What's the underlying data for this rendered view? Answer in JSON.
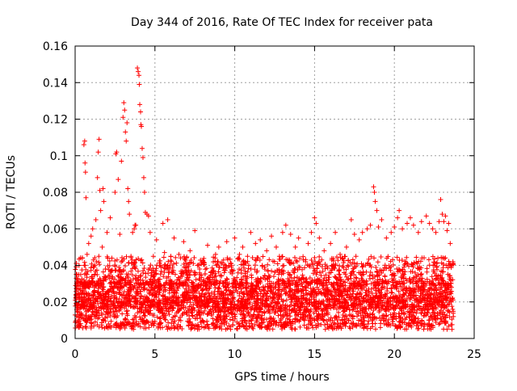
{
  "chart_data": {
    "type": "scatter",
    "title": "Day 344 of 2016, Rate Of TEC Index for receiver pata",
    "xlabel": "GPS time / hours",
    "ylabel": "ROTI / TECUs",
    "xlim": [
      0,
      25
    ],
    "ylim": [
      0,
      0.16
    ],
    "x_ticks": [
      "0",
      "5",
      "10",
      "15",
      "20",
      "25"
    ],
    "y_ticks": [
      "0",
      "0.02",
      "0.04",
      "0.06",
      "0.08",
      "0.1",
      "0.12",
      "0.14",
      "0.16"
    ],
    "grid": true,
    "marker": "plus",
    "point_color": "#ff0000",
    "points": [
      [
        0.05,
        0.022
      ],
      [
        0.1,
        0.031
      ],
      [
        0.15,
        0.018
      ],
      [
        0.2,
        0.027
      ],
      [
        0.25,
        0.04
      ],
      [
        0.3,
        0.016
      ],
      [
        0.35,
        0.035
      ],
      [
        0.4,
        0.024
      ],
      [
        0.45,
        0.044
      ],
      [
        0.5,
        0.02
      ],
      [
        0.55,
        0.106
      ],
      [
        0.6,
        0.108
      ],
      [
        0.62,
        0.096
      ],
      [
        0.65,
        0.091
      ],
      [
        0.68,
        0.077
      ],
      [
        0.7,
        0.03
      ],
      [
        0.75,
        0.046
      ],
      [
        0.8,
        0.019
      ],
      [
        0.85,
        0.052
      ],
      [
        0.9,
        0.028
      ],
      [
        1.0,
        0.056
      ],
      [
        1.05,
        0.034
      ],
      [
        1.1,
        0.06
      ],
      [
        1.2,
        0.024
      ],
      [
        1.3,
        0.065
      ],
      [
        1.35,
        0.042
      ],
      [
        1.4,
        0.088
      ],
      [
        1.45,
        0.102
      ],
      [
        1.5,
        0.109
      ],
      [
        1.55,
        0.081
      ],
      [
        1.6,
        0.07
      ],
      [
        1.7,
        0.05
      ],
      [
        1.75,
        0.082
      ],
      [
        1.8,
        0.075
      ],
      [
        1.9,
        0.038
      ],
      [
        2.0,
        0.058
      ],
      [
        2.1,
        0.026
      ],
      [
        2.2,
        0.066
      ],
      [
        2.3,
        0.044
      ],
      [
        2.4,
        0.031
      ],
      [
        2.5,
        0.08
      ],
      [
        2.55,
        0.101
      ],
      [
        2.6,
        0.102
      ],
      [
        2.7,
        0.087
      ],
      [
        2.8,
        0.057
      ],
      [
        2.9,
        0.097
      ],
      [
        3.0,
        0.121
      ],
      [
        3.05,
        0.129
      ],
      [
        3.1,
        0.125
      ],
      [
        3.15,
        0.113
      ],
      [
        3.2,
        0.108
      ],
      [
        3.25,
        0.118
      ],
      [
        3.3,
        0.082
      ],
      [
        3.35,
        0.075
      ],
      [
        3.4,
        0.068
      ],
      [
        3.5,
        0.045
      ],
      [
        3.6,
        0.058
      ],
      [
        3.7,
        0.06
      ],
      [
        3.75,
        0.062
      ],
      [
        3.8,
        0.062
      ],
      [
        3.9,
        0.148
      ],
      [
        3.95,
        0.146
      ],
      [
        4.0,
        0.144
      ],
      [
        4.02,
        0.139
      ],
      [
        4.05,
        0.128
      ],
      [
        4.1,
        0.124
      ],
      [
        4.12,
        0.117
      ],
      [
        4.15,
        0.116
      ],
      [
        4.2,
        0.104
      ],
      [
        4.25,
        0.099
      ],
      [
        4.3,
        0.088
      ],
      [
        4.35,
        0.08
      ],
      [
        4.4,
        0.069
      ],
      [
        4.5,
        0.068
      ],
      [
        4.6,
        0.067
      ],
      [
        4.7,
        0.058
      ],
      [
        4.8,
        0.036
      ],
      [
        4.9,
        0.045
      ],
      [
        5.0,
        0.025
      ],
      [
        5.1,
        0.054
      ],
      [
        5.3,
        0.04
      ],
      [
        5.5,
        0.063
      ],
      [
        5.6,
        0.047
      ],
      [
        5.8,
        0.065
      ],
      [
        6.0,
        0.03
      ],
      [
        6.2,
        0.055
      ],
      [
        6.5,
        0.046
      ],
      [
        6.8,
        0.053
      ],
      [
        7.0,
        0.024
      ],
      [
        7.2,
        0.048
      ],
      [
        7.5,
        0.059
      ],
      [
        7.8,
        0.038
      ],
      [
        8.0,
        0.042
      ],
      [
        8.3,
        0.051
      ],
      [
        8.5,
        0.036
      ],
      [
        8.8,
        0.046
      ],
      [
        9.0,
        0.05
      ],
      [
        9.3,
        0.043
      ],
      [
        9.5,
        0.053
      ],
      [
        9.8,
        0.04
      ],
      [
        10.0,
        0.055
      ],
      [
        10.3,
        0.046
      ],
      [
        10.5,
        0.05
      ],
      [
        10.8,
        0.045
      ],
      [
        11.0,
        0.058
      ],
      [
        11.3,
        0.052
      ],
      [
        11.6,
        0.054
      ],
      [
        12.0,
        0.048
      ],
      [
        12.3,
        0.056
      ],
      [
        12.6,
        0.05
      ],
      [
        12.8,
        0.045
      ],
      [
        13.0,
        0.058
      ],
      [
        13.2,
        0.062
      ],
      [
        13.5,
        0.057
      ],
      [
        13.8,
        0.05
      ],
      [
        14.0,
        0.055
      ],
      [
        14.3,
        0.043
      ],
      [
        14.6,
        0.052
      ],
      [
        14.8,
        0.058
      ],
      [
        15.0,
        0.066
      ],
      [
        15.1,
        0.063
      ],
      [
        15.3,
        0.055
      ],
      [
        15.6,
        0.048
      ],
      [
        16.0,
        0.052
      ],
      [
        16.3,
        0.058
      ],
      [
        16.6,
        0.046
      ],
      [
        17.0,
        0.05
      ],
      [
        17.3,
        0.065
      ],
      [
        17.5,
        0.057
      ],
      [
        17.8,
        0.054
      ],
      [
        18.0,
        0.058
      ],
      [
        18.3,
        0.06
      ],
      [
        18.5,
        0.062
      ],
      [
        18.7,
        0.083
      ],
      [
        18.75,
        0.08
      ],
      [
        18.8,
        0.075
      ],
      [
        18.9,
        0.07
      ],
      [
        19.0,
        0.061
      ],
      [
        19.2,
        0.065
      ],
      [
        19.5,
        0.055
      ],
      [
        19.8,
        0.058
      ],
      [
        20.0,
        0.061
      ],
      [
        20.2,
        0.066
      ],
      [
        20.3,
        0.07
      ],
      [
        20.5,
        0.06
      ],
      [
        20.8,
        0.063
      ],
      [
        21.0,
        0.066
      ],
      [
        21.2,
        0.062
      ],
      [
        21.5,
        0.058
      ],
      [
        21.7,
        0.064
      ],
      [
        22.0,
        0.067
      ],
      [
        22.2,
        0.063
      ],
      [
        22.4,
        0.06
      ],
      [
        22.6,
        0.058
      ],
      [
        22.8,
        0.064
      ],
      [
        22.9,
        0.076
      ],
      [
        23.0,
        0.068
      ],
      [
        23.1,
        0.064
      ],
      [
        23.2,
        0.067
      ],
      [
        23.3,
        0.059
      ],
      [
        23.4,
        0.063
      ],
      [
        23.5,
        0.052
      ],
      [
        23.6,
        0.04
      ],
      [
        23.7,
        0.012
      ]
    ],
    "dense_band": {
      "x_range": [
        0.0,
        23.7
      ],
      "y_min": 0.005,
      "y_q1": 0.016,
      "y_median": 0.022,
      "y_q3": 0.03,
      "y_upper": 0.045
    }
  }
}
